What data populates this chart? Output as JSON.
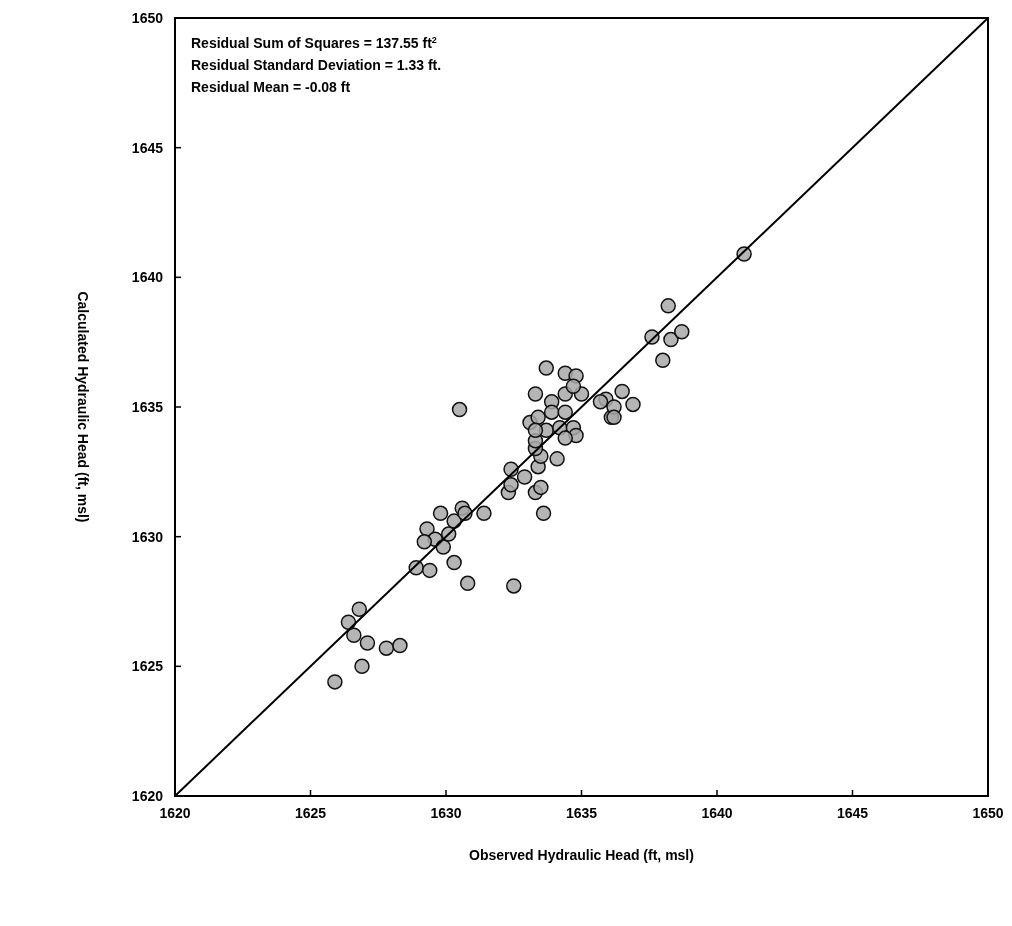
{
  "chart_data": {
    "type": "scatter",
    "xlabel": "Observed Hydraulic Head (ft, msl)",
    "ylabel": "Calculated Hydraulic Head (ft, msl)",
    "annotations": [
      "Residual Sum of Squares = 137.55 ft$^{2}$",
      "Residual Standard Deviation = 1.33 ft.",
      "Residual Mean = -0.08 ft"
    ],
    "xlim": [
      1620,
      1650
    ],
    "ylim": [
      1620,
      1650
    ],
    "xticks": [
      1620,
      1625,
      1630,
      1635,
      1640,
      1645,
      1650
    ],
    "yticks": [
      1620,
      1625,
      1630,
      1635,
      1640,
      1645,
      1650
    ],
    "grid": false,
    "series": [
      {
        "color": "#a8a8a8",
        "marker": "circle",
        "x": [
          1625.9,
          1626.9,
          1627.1,
          1627.8,
          1628.3,
          1626.6,
          1626.4,
          1626.8,
          1628.9,
          1629.4,
          1630.8,
          1632.5,
          1630.3,
          1629.3,
          1629.6,
          1629.9,
          1630.1,
          1629.2,
          1629.8,
          1630.3,
          1630.6,
          1630.7,
          1631.4,
          1633.6,
          1633.3,
          1633.5,
          1632.3,
          1632.4,
          1632.4,
          1632.9,
          1633.4,
          1634.1,
          1633.5,
          1633.3,
          1633.3,
          1633.1,
          1633.4,
          1633.9,
          1633.7,
          1634.2,
          1634.7,
          1634.8,
          1634.4,
          1633.9,
          1634.4,
          1633.3,
          1630.5,
          1633.3,
          1633.7,
          1634.4,
          1634.8,
          1634.4,
          1635.0,
          1634.7,
          1635.9,
          1636.1,
          1641.0,
          1638.2,
          1637.6,
          1638.3,
          1638.7,
          1638.0,
          1635.7,
          1636.5,
          1636.2,
          1636.2,
          1636.9
        ],
        "values": [
          1624.4,
          1625.0,
          1625.9,
          1625.7,
          1625.8,
          1626.2,
          1626.7,
          1627.2,
          1628.8,
          1628.7,
          1628.2,
          1628.1,
          1629.0,
          1630.3,
          1629.9,
          1629.6,
          1630.1,
          1629.8,
          1630.9,
          1630.6,
          1631.1,
          1630.9,
          1630.9,
          1630.9,
          1631.7,
          1631.9,
          1631.7,
          1632.0,
          1632.6,
          1632.3,
          1632.7,
          1633.0,
          1633.1,
          1633.4,
          1633.7,
          1634.4,
          1634.6,
          1635.2,
          1634.1,
          1634.2,
          1634.2,
          1633.9,
          1633.8,
          1634.8,
          1634.8,
          1634.1,
          1634.9,
          1635.5,
          1636.5,
          1636.3,
          1636.2,
          1635.5,
          1635.5,
          1635.8,
          1635.3,
          1634.6,
          1640.9,
          1638.9,
          1637.7,
          1637.6,
          1637.9,
          1636.8,
          1635.2,
          1635.6,
          1635.0,
          1634.6,
          1635.1
        ]
      },
      {
        "type": "line",
        "color": "#000000",
        "line_style": "solid",
        "x": [
          1620,
          1650
        ],
        "values": [
          1620,
          1650
        ]
      }
    ]
  }
}
